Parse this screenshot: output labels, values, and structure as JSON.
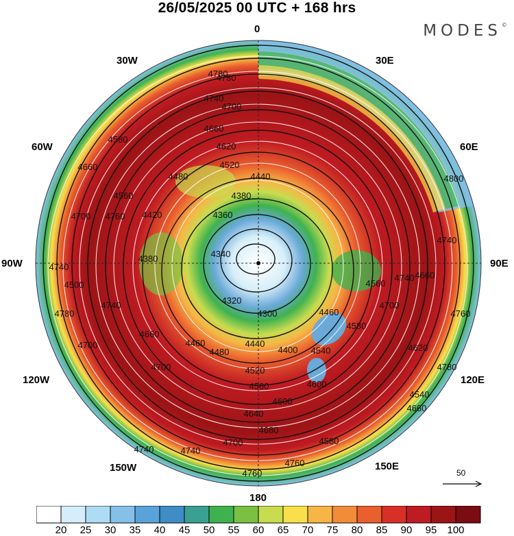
{
  "header": {
    "title": "26/05/2025  00 UTC  + 168 hrs",
    "brand": "MODES",
    "brand_mark": "©"
  },
  "map": {
    "projection": "north-polar-stereographic",
    "longitude_labels": [
      "0",
      "30E",
      "60E",
      "90E",
      "120E",
      "150E",
      "180",
      "150W",
      "120W",
      "90W",
      "60W",
      "30W"
    ],
    "contour_labels": [
      {
        "text": "4780"
      },
      {
        "text": "4740"
      },
      {
        "text": "4700"
      },
      {
        "text": "4660"
      },
      {
        "text": "4620"
      },
      {
        "text": "4580"
      },
      {
        "text": "4520"
      },
      {
        "text": "4480"
      },
      {
        "text": "4440"
      },
      {
        "text": "4420"
      },
      {
        "text": "4380"
      },
      {
        "text": "4380"
      },
      {
        "text": "4360"
      },
      {
        "text": "4340"
      },
      {
        "text": "4320"
      },
      {
        "text": "4300"
      },
      {
        "text": "4400"
      },
      {
        "text": "4460"
      },
      {
        "text": "4480"
      },
      {
        "text": "4440"
      },
      {
        "text": "4540"
      },
      {
        "text": "4520"
      },
      {
        "text": "4560"
      },
      {
        "text": "4600"
      },
      {
        "text": "4600"
      },
      {
        "text": "4640"
      },
      {
        "text": "4680"
      },
      {
        "text": "4700"
      },
      {
        "text": "4740"
      },
      {
        "text": "4760"
      },
      {
        "text": "4780"
      },
      {
        "text": "4800"
      },
      {
        "text": "4740"
      },
      {
        "text": "4760"
      },
      {
        "text": "4660"
      },
      {
        "text": "4560"
      },
      {
        "text": "4780"
      },
      {
        "text": "4740"
      },
      {
        "text": "4700"
      },
      {
        "text": "4660"
      },
      {
        "text": "4580"
      },
      {
        "text": "4760"
      },
      {
        "text": "4740"
      },
      {
        "text": "4700"
      },
      {
        "text": "4740"
      },
      {
        "text": "4700"
      },
      {
        "text": "4660"
      },
      {
        "text": "4560"
      },
      {
        "text": "4500"
      },
      {
        "text": "4780"
      },
      {
        "text": "4760"
      },
      {
        "text": "4740"
      },
      {
        "text": "4700"
      },
      {
        "text": "4660"
      },
      {
        "text": "4620"
      },
      {
        "text": "4580"
      },
      {
        "text": "4540"
      },
      {
        "text": "4460"
      }
    ],
    "reference_vector": {
      "value": "50"
    }
  },
  "colorbar": {
    "labels": [
      "20",
      "25",
      "30",
      "35",
      "40",
      "45",
      "50",
      "55",
      "60",
      "65",
      "70",
      "75",
      "80",
      "85",
      "90",
      "95",
      "100"
    ],
    "colors": [
      "#ffffff",
      "#d5eefb",
      "#aedcf5",
      "#84c0e8",
      "#5aa3d9",
      "#3f8cc6",
      "#3aa092",
      "#3fb24f",
      "#7ac143",
      "#c8dc4f",
      "#f9e04b",
      "#f7b545",
      "#f28c3a",
      "#ea5f2e",
      "#d83027",
      "#bf1b22",
      "#9c1416",
      "#7a0c12"
    ]
  }
}
